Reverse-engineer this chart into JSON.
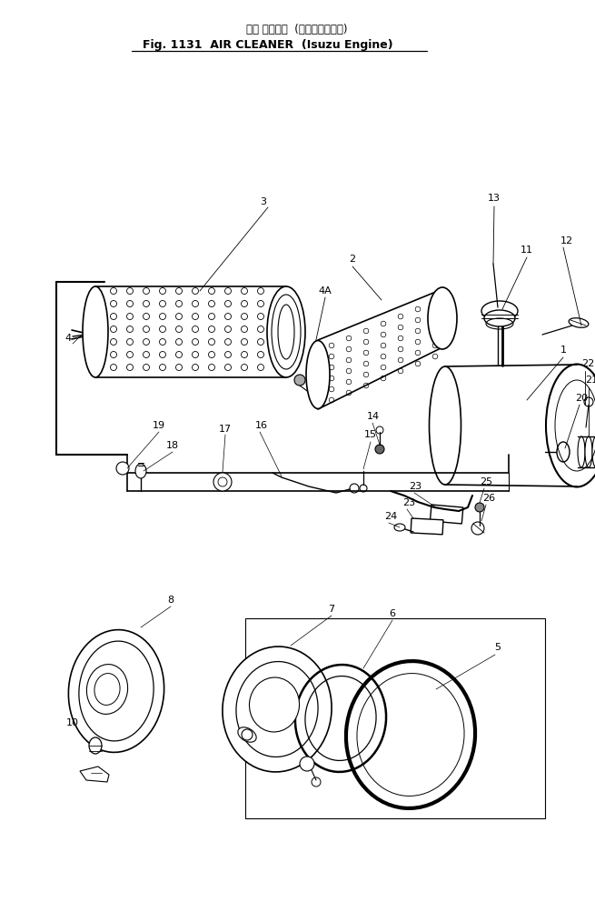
{
  "bg_color": "#ffffff",
  "line_color": "#000000",
  "fig_width": 6.55,
  "fig_height": 10.14,
  "dpi": 100,
  "title_jp": "エア クリーナ  (いずエンジン)",
  "title_en": "Fig. 1131  AIR CLEANER  (Isuzu Engine)"
}
